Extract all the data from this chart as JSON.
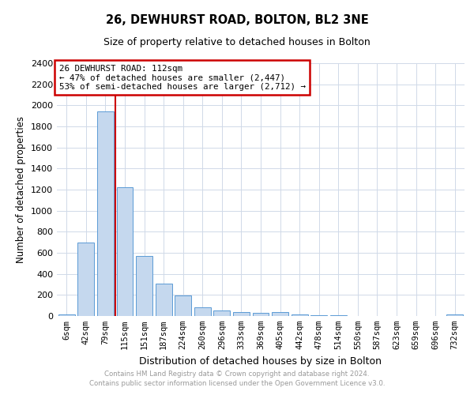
{
  "title": "26, DEWHURST ROAD, BOLTON, BL2 3NE",
  "subtitle": "Size of property relative to detached houses in Bolton",
  "xlabel": "Distribution of detached houses by size in Bolton",
  "ylabel": "Number of detached properties",
  "categories": [
    "6sqm",
    "42sqm",
    "79sqm",
    "115sqm",
    "151sqm",
    "187sqm",
    "224sqm",
    "260sqm",
    "296sqm",
    "333sqm",
    "369sqm",
    "405sqm",
    "442sqm",
    "478sqm",
    "514sqm",
    "550sqm",
    "587sqm",
    "623sqm",
    "659sqm",
    "696sqm",
    "732sqm"
  ],
  "values": [
    18,
    700,
    1940,
    1220,
    570,
    305,
    198,
    83,
    50,
    35,
    30,
    35,
    18,
    10,
    5,
    3,
    3,
    2,
    2,
    2,
    18
  ],
  "bar_color": "#c5d8ee",
  "bar_edge_color": "#5b9bd5",
  "annotation_text_line1": "26 DEWHURST ROAD: 112sqm",
  "annotation_text_line2": "← 47% of detached houses are smaller (2,447)",
  "annotation_text_line3": "53% of semi-detached houses are larger (2,712) →",
  "vline_color": "#cc0000",
  "annotation_box_edgecolor": "#cc0000",
  "grid_color": "#d0d9e8",
  "footer_line1": "Contains HM Land Registry data © Crown copyright and database right 2024.",
  "footer_line2": "Contains public sector information licensed under the Open Government Licence v3.0.",
  "ylim": [
    0,
    2400
  ],
  "yticks": [
    0,
    200,
    400,
    600,
    800,
    1000,
    1200,
    1400,
    1600,
    1800,
    2000,
    2200,
    2400
  ],
  "vline_x": 2.5
}
